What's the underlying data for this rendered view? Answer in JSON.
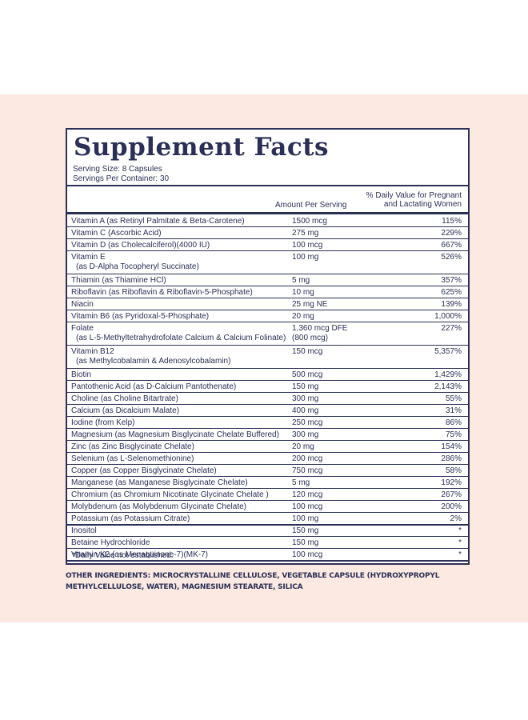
{
  "label": {
    "title": "Supplement Facts",
    "serving_size": "Serving Size: 8 Capsules",
    "servings_per_container": "Servings Per Container: 30",
    "col_amount": "Amount Per Serving",
    "col_dv_line1": "% Daily Value for Pregnant",
    "col_dv_line2": "and Lactating Women",
    "rows": [
      {
        "name": "Vitamin A (as Retinyl Palmitate & Beta-Carotene)",
        "name2": "",
        "amount": "1500 mcg",
        "amount2": "",
        "dv": "115%"
      },
      {
        "name": "Vitamin C (Ascorbic Acid)",
        "name2": "",
        "amount": "275 mg",
        "amount2": "",
        "dv": "229%"
      },
      {
        "name": "Vitamin D (as Cholecalciferol)(4000 IU)",
        "name2": "",
        "amount": "100 mcg",
        "amount2": "",
        "dv": "667%"
      },
      {
        "name": "Vitamin E",
        "name2": "(as D-Alpha Tocopheryl Succinate)",
        "amount": "100 mg",
        "amount2": "",
        "dv": "526%"
      },
      {
        "name": "Thiamin (as Thiamine HCl)",
        "name2": "",
        "amount": "5 mg",
        "amount2": "",
        "dv": "357%"
      },
      {
        "name": "Riboflavin (as Riboflavin & Riboflavin-5-Phosphate)",
        "name2": "",
        "amount": "10 mg",
        "amount2": "",
        "dv": "625%"
      },
      {
        "name": "Niacin",
        "name2": "",
        "amount": "25 mg NE",
        "amount2": "",
        "dv": "139%"
      },
      {
        "name": "Vitamin B6 (as Pyridoxal-5-Phosphate)",
        "name2": "",
        "amount": "20 mg",
        "amount2": "",
        "dv": "1,000%"
      },
      {
        "name": "Folate",
        "name2": "(as L-5-Methyltetrahydrofolate Calcium & Calcium Folinate)",
        "amount": "1,360 mcg DFE",
        "amount2": "(800 mcg)",
        "dv": "227%"
      },
      {
        "name": "Vitamin B12",
        "name2": "(as Methylcobalamin & Adenosylcobalamin)",
        "amount": "150 mcg",
        "amount2": "",
        "dv": "5,357%"
      },
      {
        "name": "Biotin",
        "name2": "",
        "amount": "500 mcg",
        "amount2": "",
        "dv": "1,429%"
      },
      {
        "name": "Pantothenic Acid (as D-Calcium Pantothenate)",
        "name2": "",
        "amount": "150 mg",
        "amount2": "",
        "dv": "2,143%"
      },
      {
        "name": "Choline (as Choline Bitartrate)",
        "name2": "",
        "amount": "300 mg",
        "amount2": "",
        "dv": "55%"
      },
      {
        "name": "Calcium (as Dicalcium Malate)",
        "name2": "",
        "amount": "400 mg",
        "amount2": "",
        "dv": "31%"
      },
      {
        "name": "Iodine (from Kelp)",
        "name2": "",
        "amount": "250 mcg",
        "amount2": "",
        "dv": "86%"
      },
      {
        "name": "Magnesium (as Magnesium Bisglycinate Chelate Buffered)",
        "name2": "",
        "amount": "300 mg",
        "amount2": "",
        "dv": "75%"
      },
      {
        "name": "Zinc (as Zinc Bisglycinate Chelate)",
        "name2": "",
        "amount": "20 mg",
        "amount2": "",
        "dv": "154%"
      },
      {
        "name": "Selenium (as L-Selenomethionine)",
        "name2": "",
        "amount": "200 mcg",
        "amount2": "",
        "dv": "286%"
      },
      {
        "name": "Copper (as Copper Bisglycinate Chelate)",
        "name2": "",
        "amount": "750 mcg",
        "amount2": "",
        "dv": "58%"
      },
      {
        "name": "Manganese (as Manganese Bisglycinate Chelate)",
        "name2": "",
        "amount": "5 mg",
        "amount2": "",
        "dv": "192%"
      },
      {
        "name": "Chromium (as Chromium Nicotinate Glycinate Chelate )",
        "name2": "",
        "amount": "120 mcg",
        "amount2": "",
        "dv": "267%"
      },
      {
        "name": "Molybdenum (as Molybdenum Glycinate Chelate)",
        "name2": "",
        "amount": "100 mcg",
        "amount2": "",
        "dv": "200%"
      },
      {
        "name": "Potassium (as Potassium Citrate)",
        "name2": "",
        "amount": "100 mg",
        "amount2": "",
        "dv": "2%"
      },
      {
        "name": "Inositol",
        "name2": "",
        "amount": "150 mg",
        "amount2": "",
        "dv": "*"
      },
      {
        "name": "Betaine Hydrochloride",
        "name2": "",
        "amount": "150 mg",
        "amount2": "",
        "dv": "*"
      },
      {
        "name": "Vitamin K2 (as Menaquinone-7)(MK-7)",
        "name2": "",
        "amount": "100 mcg",
        "amount2": "",
        "dv": "*"
      }
    ],
    "footnote": "*Daily Value not established."
  },
  "other_ingredients": {
    "heading": "OTHER INGREDIENTS:",
    "text": "MICROCRYSTALLINE CELLULOSE, VEGETABLE CAPSULE (HYDROXYPROPYL METHYLCELLULOSE, WATER), MAGNESIUM STEARATE, SILICA"
  },
  "colors": {
    "navy": "#2b2f55",
    "band": "#fbe9e2"
  }
}
